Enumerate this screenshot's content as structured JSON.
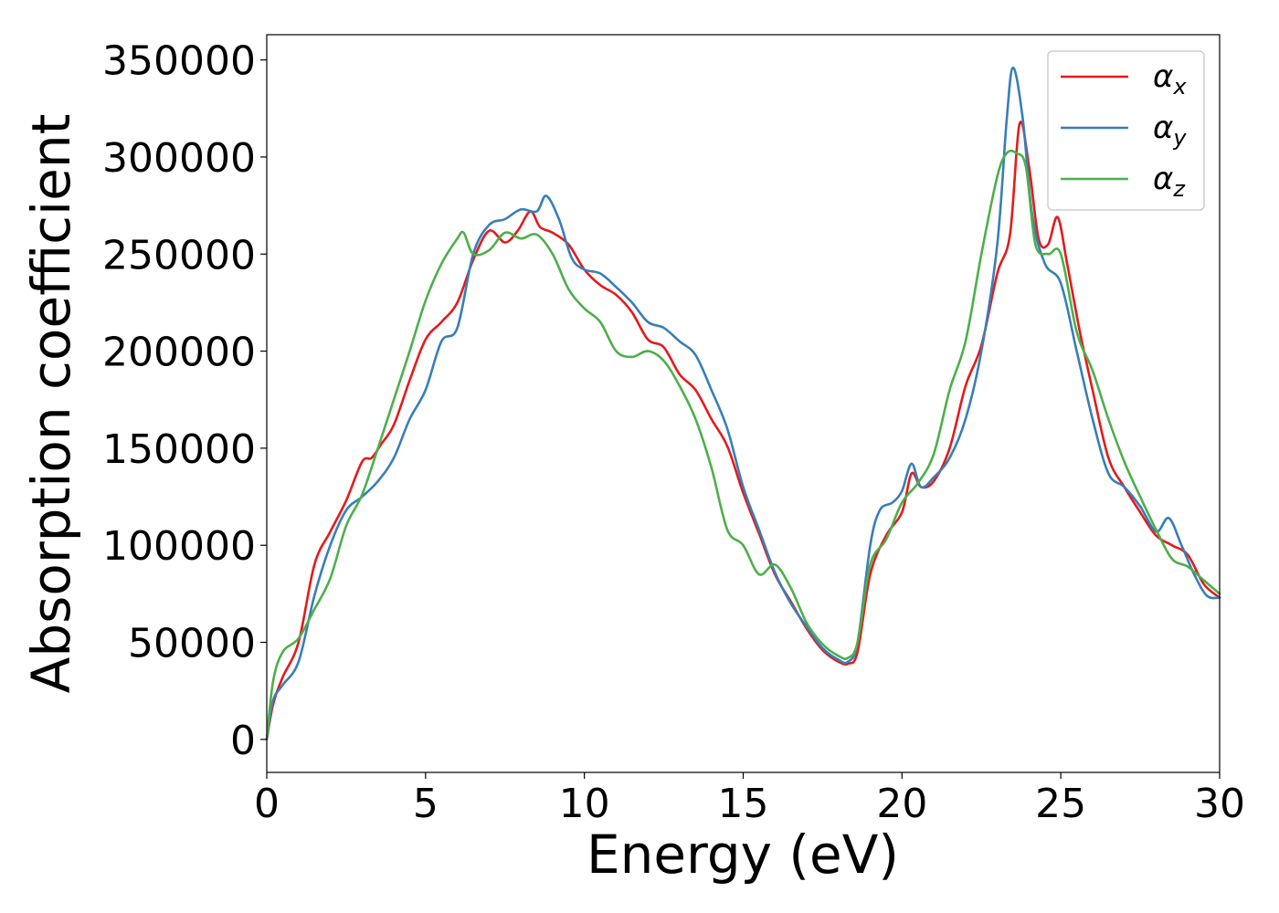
{
  "chart_data": {
    "type": "line",
    "title": "",
    "xlabel": "Energy (eV)",
    "ylabel": "Absorption coefficient",
    "xlim": [
      0,
      30
    ],
    "ylim": [
      -17000,
      363000
    ],
    "xticks": [
      "0",
      "5",
      "10",
      "15",
      "20",
      "25",
      "30"
    ],
    "yticks": [
      "0",
      "50000",
      "100000",
      "150000",
      "200000",
      "250000",
      "300000",
      "350000"
    ],
    "grid": false,
    "legend_position": "top-right",
    "series": [
      {
        "name": "α_x",
        "label_base": "α",
        "label_sub": "x",
        "color": "#e41a1c",
        "x": [
          0,
          0.2,
          0.5,
          1.0,
          1.5,
          2.0,
          2.5,
          3.0,
          3.3,
          3.6,
          4.0,
          4.5,
          5.0,
          5.5,
          6.0,
          6.5,
          7.0,
          7.5,
          7.9,
          8.3,
          8.6,
          9.0,
          9.5,
          10.0,
          10.5,
          11.0,
          11.5,
          12.0,
          12.5,
          13.0,
          13.5,
          14.0,
          14.5,
          15.0,
          15.5,
          16.0,
          16.5,
          17.0,
          17.5,
          18.0,
          18.3,
          18.6,
          19.0,
          19.5,
          20.0,
          20.3,
          20.6,
          21.0,
          21.5,
          22.0,
          22.5,
          23.0,
          23.4,
          23.7,
          24.0,
          24.3,
          24.6,
          24.9,
          25.2,
          25.6,
          26.0,
          26.5,
          27.0,
          27.5,
          28.0,
          28.5,
          29.0,
          29.5,
          30.0
        ],
        "y": [
          0,
          18000,
          32000,
          50000,
          90000,
          107000,
          123000,
          143000,
          145000,
          152000,
          162000,
          185000,
          206000,
          215000,
          225000,
          247000,
          262000,
          256000,
          262000,
          272000,
          264000,
          261000,
          255000,
          242000,
          234000,
          229000,
          220000,
          206000,
          202000,
          188000,
          180000,
          165000,
          151000,
          127000,
          106000,
          85000,
          71000,
          57000,
          46000,
          40000,
          39000,
          45000,
          85000,
          105000,
          117000,
          137000,
          130000,
          133000,
          150000,
          182000,
          203000,
          240000,
          260000,
          317000,
          295000,
          258000,
          255000,
          269000,
          245000,
          210000,
          180000,
          145000,
          130000,
          117000,
          105000,
          100000,
          95000,
          80000,
          73000
        ]
      },
      {
        "name": "α_y",
        "label_base": "α",
        "label_sub": "y",
        "color": "#377eb8",
        "x": [
          0,
          0.2,
          0.5,
          1.0,
          1.5,
          2.0,
          2.5,
          3.0,
          3.5,
          4.0,
          4.5,
          5.0,
          5.5,
          6.0,
          6.5,
          7.0,
          7.5,
          8.0,
          8.5,
          8.8,
          9.2,
          9.6,
          10.0,
          10.5,
          11.0,
          11.5,
          12.0,
          12.5,
          13.0,
          13.5,
          14.0,
          14.5,
          15.0,
          15.5,
          16.0,
          16.5,
          17.0,
          17.5,
          18.0,
          18.3,
          18.6,
          19.0,
          19.3,
          19.7,
          20.0,
          20.3,
          20.6,
          21.0,
          21.5,
          22.0,
          22.5,
          23.0,
          23.3,
          23.5,
          23.8,
          24.1,
          24.5,
          25.0,
          25.5,
          26.0,
          26.5,
          27.0,
          27.5,
          28.0,
          28.4,
          28.8,
          29.2,
          29.6,
          30.0
        ],
        "y": [
          0,
          20000,
          28000,
          40000,
          74000,
          100000,
          118000,
          125000,
          133000,
          145000,
          165000,
          180000,
          205000,
          212000,
          250000,
          265000,
          268000,
          273000,
          272000,
          280000,
          268000,
          248000,
          242000,
          240000,
          233000,
          225000,
          215000,
          212000,
          205000,
          198000,
          180000,
          160000,
          130000,
          108000,
          86000,
          70000,
          58000,
          47000,
          41000,
          40000,
          50000,
          100000,
          118000,
          122000,
          128000,
          142000,
          130000,
          135000,
          145000,
          165000,
          200000,
          255000,
          320000,
          346000,
          320000,
          270000,
          245000,
          235000,
          200000,
          165000,
          137000,
          130000,
          120000,
          107000,
          114000,
          100000,
          85000,
          74000,
          73000
        ]
      },
      {
        "name": "α_z",
        "label_base": "α",
        "label_sub": "z",
        "color": "#4daf4a",
        "x": [
          0,
          0.2,
          0.5,
          1.0,
          1.5,
          2.0,
          2.5,
          3.0,
          3.5,
          4.0,
          4.5,
          5.0,
          5.5,
          6.0,
          6.2,
          6.5,
          7.0,
          7.5,
          8.0,
          8.5,
          9.0,
          9.5,
          10.0,
          10.5,
          11.0,
          11.5,
          12.0,
          12.5,
          13.0,
          13.5,
          14.0,
          14.5,
          15.0,
          15.5,
          16.0,
          16.5,
          17.0,
          17.5,
          18.0,
          18.3,
          18.6,
          19.0,
          19.5,
          20.0,
          20.5,
          21.0,
          21.5,
          22.0,
          22.5,
          23.0,
          23.3,
          23.6,
          23.9,
          24.2,
          24.6,
          25.0,
          25.5,
          26.0,
          26.5,
          27.0,
          27.5,
          28.0,
          28.5,
          29.0,
          29.5,
          30.0
        ],
        "y": [
          0,
          30000,
          45000,
          52000,
          67000,
          83000,
          110000,
          126000,
          150000,
          175000,
          200000,
          226000,
          245000,
          258000,
          261000,
          250000,
          252000,
          261000,
          258000,
          260000,
          250000,
          232000,
          222000,
          215000,
          200000,
          197000,
          200000,
          195000,
          182000,
          165000,
          140000,
          108000,
          100000,
          85000,
          90000,
          78000,
          60000,
          49000,
          43000,
          42000,
          50000,
          90000,
          103000,
          122000,
          132000,
          147000,
          180000,
          205000,
          250000,
          290000,
          302000,
          302000,
          295000,
          255000,
          250000,
          250000,
          210000,
          190000,
          165000,
          143000,
          125000,
          108000,
          93000,
          89000,
          82000,
          75000
        ]
      }
    ]
  }
}
